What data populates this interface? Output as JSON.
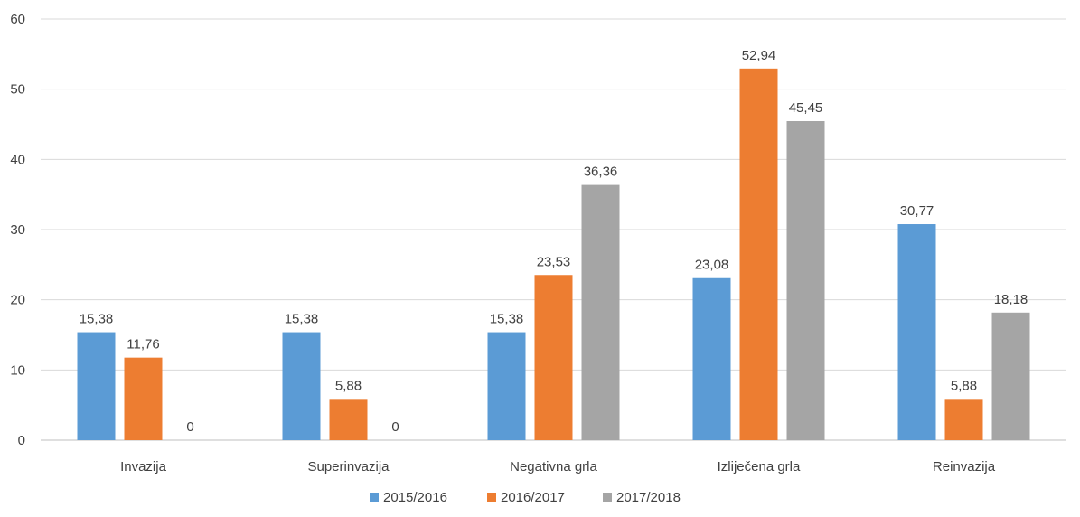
{
  "chart_data": {
    "type": "bar",
    "categories": [
      "Invazija",
      "Superinvazija",
      "Negativna grla",
      "Izliječena grla",
      "Reinvazija"
    ],
    "series": [
      {
        "name": "2015/2016",
        "values": [
          15.38,
          15.38,
          15.38,
          23.08,
          30.77
        ],
        "labels": [
          "15,38",
          "15,38",
          "15,38",
          "23,08",
          "30,77"
        ],
        "color": "#5B9BD5"
      },
      {
        "name": "2016/2017",
        "values": [
          11.76,
          5.88,
          23.53,
          52.94,
          5.88
        ],
        "labels": [
          "11,76",
          "5,88",
          "23,53",
          "52,94",
          "5,88"
        ],
        "color": "#ED7D31"
      },
      {
        "name": "2017/2018",
        "values": [
          0,
          0,
          36.36,
          45.45,
          18.18
        ],
        "labels": [
          "0",
          "0",
          "36,36",
          "45,45",
          "18,18"
        ],
        "color": "#A5A5A5"
      }
    ],
    "yticks": [
      "0",
      "10",
      "20",
      "30",
      "40",
      "50",
      "60"
    ],
    "ylim": [
      0,
      60
    ],
    "grid": true,
    "legend_position": "bottom"
  }
}
